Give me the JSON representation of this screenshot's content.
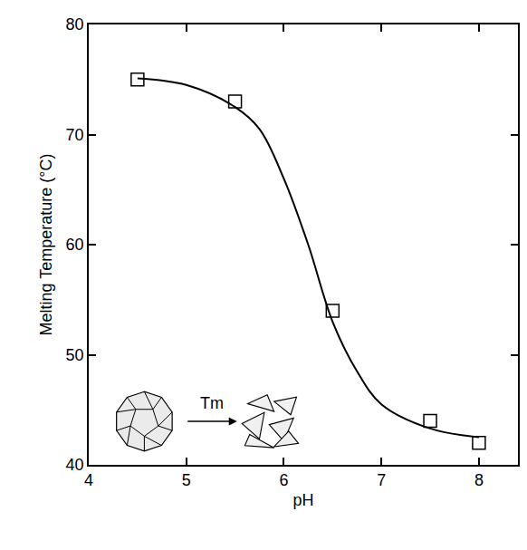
{
  "chart_data": {
    "type": "scatter",
    "x_label": "pH",
    "y_label": "Melting Temperature (°C)",
    "xlim": [
      4,
      8.4
    ],
    "xticks": [
      4,
      5,
      6,
      7,
      8
    ],
    "ylim": [
      40,
      80
    ],
    "yticks": [
      40,
      50,
      60,
      70,
      80
    ],
    "grid": false,
    "annotations": [
      "Tm"
    ],
    "series": [
      {
        "type": "scatter",
        "marker": "square-open",
        "color": "#000000",
        "x": [
          4.5,
          5.5,
          6.5,
          7.5,
          8.0
        ],
        "values": [
          75,
          73,
          54,
          44,
          42
        ]
      },
      {
        "type": "line",
        "line_style": "solid",
        "color": "#000000",
        "x": [
          4.5,
          5.0,
          5.5,
          5.75,
          6.0,
          6.25,
          6.5,
          6.75,
          7.0,
          7.5,
          8.0
        ],
        "values": [
          75.1,
          74.5,
          72.5,
          70.5,
          66,
          60,
          53,
          48.5,
          45.5,
          43.3,
          42.5
        ]
      }
    ]
  }
}
